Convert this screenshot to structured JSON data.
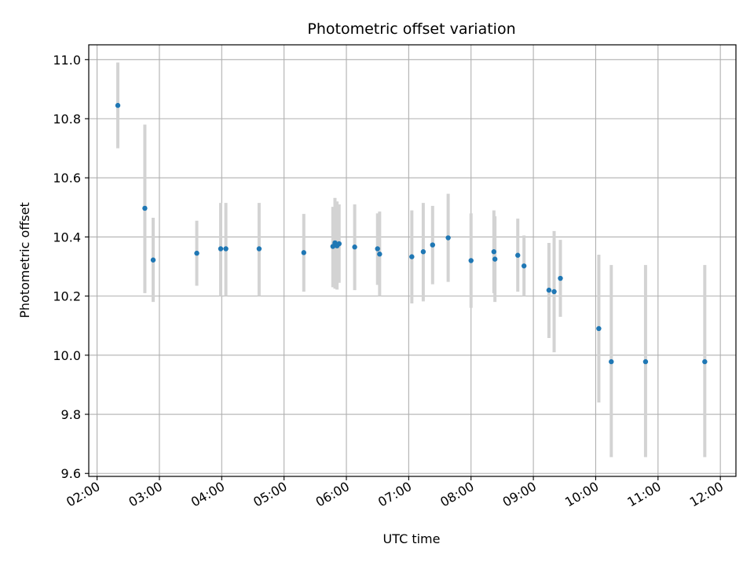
{
  "chart_data": {
    "type": "scatter",
    "title": "Photometric offset variation",
    "xlabel": "UTC time",
    "ylabel": "Photometric offset",
    "x_axis": "time",
    "xlim": [
      "01:52",
      "12:15"
    ],
    "ylim": [
      9.59,
      11.05
    ],
    "x_ticks": [
      "02:00",
      "03:00",
      "04:00",
      "05:00",
      "06:00",
      "07:00",
      "08:00",
      "09:00",
      "10:00",
      "11:00",
      "12:00"
    ],
    "y_ticks": [
      "9.6",
      "9.8",
      "10.0",
      "10.2",
      "10.4",
      "10.6",
      "10.8",
      "11.0"
    ],
    "grid": true,
    "legend": "none",
    "colors": {
      "marker": "#1f77b4",
      "errorbar": "#d3d3d3",
      "grid": "#b0b0b0"
    },
    "series": [
      {
        "points": [
          {
            "x": "02:20",
            "y": 10.845,
            "lo": 10.7,
            "hi": 10.99
          },
          {
            "x": "02:46",
            "y": 10.497,
            "lo": 10.21,
            "hi": 10.78
          },
          {
            "x": "02:54",
            "y": 10.322,
            "lo": 10.18,
            "hi": 10.465
          },
          {
            "x": "03:36",
            "y": 10.345,
            "lo": 10.235,
            "hi": 10.455
          },
          {
            "x": "03:59",
            "y": 10.36,
            "lo": 10.2,
            "hi": 10.515
          },
          {
            "x": "04:04",
            "y": 10.36,
            "lo": 10.2,
            "hi": 10.515
          },
          {
            "x": "04:36",
            "y": 10.36,
            "lo": 10.2,
            "hi": 10.515
          },
          {
            "x": "05:19",
            "y": 10.347,
            "lo": 10.215,
            "hi": 10.478
          },
          {
            "x": "05:47",
            "y": 10.368,
            "lo": 10.23,
            "hi": 10.502
          },
          {
            "x": "05:49",
            "y": 10.38,
            "lo": 10.225,
            "hi": 10.532
          },
          {
            "x": "05:51",
            "y": 10.37,
            "lo": 10.222,
            "hi": 10.52
          },
          {
            "x": "05:53",
            "y": 10.377,
            "lo": 10.245,
            "hi": 10.51
          },
          {
            "x": "06:08",
            "y": 10.366,
            "lo": 10.22,
            "hi": 10.51
          },
          {
            "x": "06:30",
            "y": 10.36,
            "lo": 10.238,
            "hi": 10.48
          },
          {
            "x": "06:32",
            "y": 10.342,
            "lo": 10.2,
            "hi": 10.486
          },
          {
            "x": "07:03",
            "y": 10.333,
            "lo": 10.175,
            "hi": 10.49
          },
          {
            "x": "07:14",
            "y": 10.35,
            "lo": 10.182,
            "hi": 10.515
          },
          {
            "x": "07:23",
            "y": 10.373,
            "lo": 10.24,
            "hi": 10.505
          },
          {
            "x": "07:38",
            "y": 10.397,
            "lo": 10.248,
            "hi": 10.546
          },
          {
            "x": "08:00",
            "y": 10.32,
            "lo": 10.16,
            "hi": 10.48
          },
          {
            "x": "08:22",
            "y": 10.35,
            "lo": 10.21,
            "hi": 10.49
          },
          {
            "x": "08:23",
            "y": 10.325,
            "lo": 10.18,
            "hi": 10.47
          },
          {
            "x": "08:45",
            "y": 10.338,
            "lo": 10.215,
            "hi": 10.462
          },
          {
            "x": "08:51",
            "y": 10.302,
            "lo": 10.2,
            "hi": 10.405
          },
          {
            "x": "09:15",
            "y": 10.22,
            "lo": 10.058,
            "hi": 10.38
          },
          {
            "x": "09:20",
            "y": 10.215,
            "lo": 10.01,
            "hi": 10.42
          },
          {
            "x": "09:26",
            "y": 10.26,
            "lo": 10.13,
            "hi": 10.39
          },
          {
            "x": "10:03",
            "y": 10.09,
            "lo": 9.84,
            "hi": 10.34
          },
          {
            "x": "10:15",
            "y": 9.978,
            "lo": 9.655,
            "hi": 10.305
          },
          {
            "x": "10:48",
            "y": 9.978,
            "lo": 9.655,
            "hi": 10.305
          },
          {
            "x": "11:45",
            "y": 9.978,
            "lo": 9.655,
            "hi": 10.305
          }
        ]
      }
    ]
  }
}
